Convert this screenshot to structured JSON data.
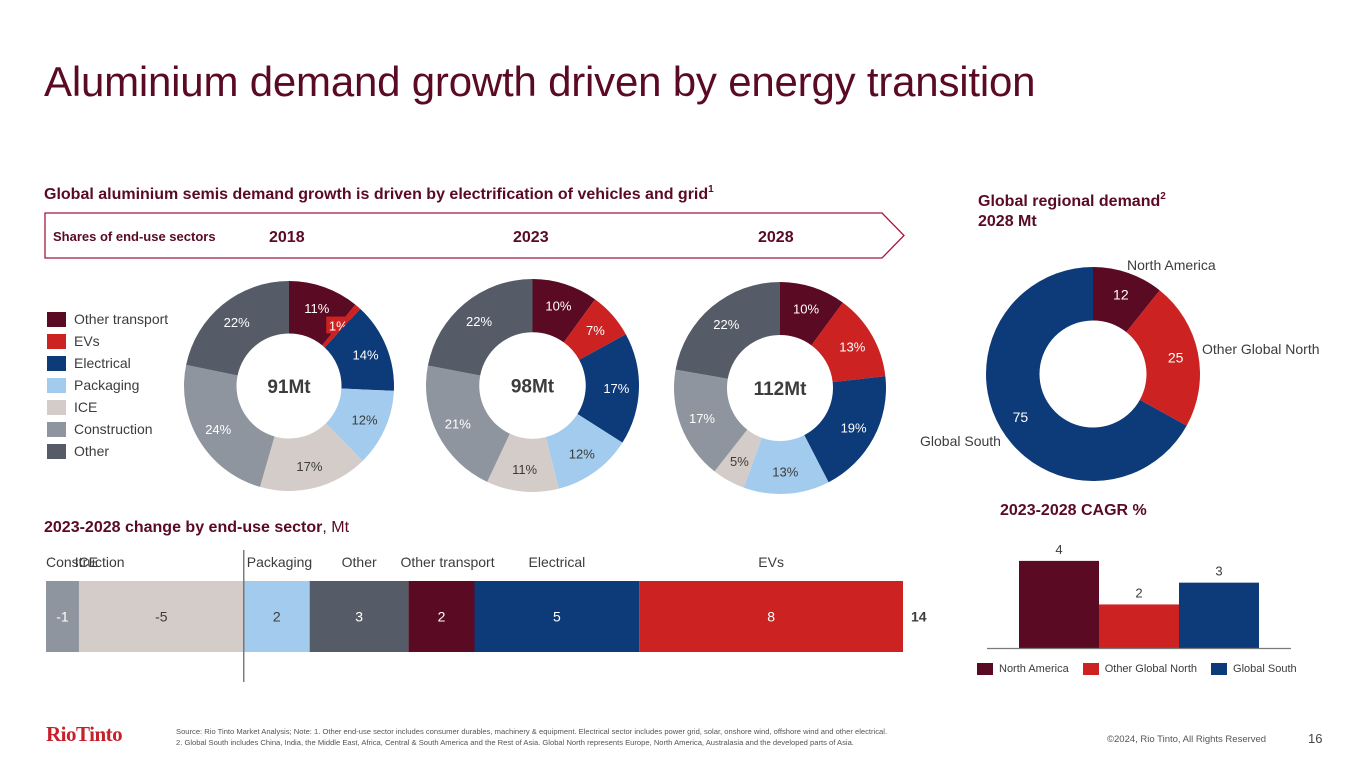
{
  "slide": {
    "title": "Aluminium demand growth driven by energy transition",
    "page_number": "16",
    "copyright": "©2024, Rio Tinto, All Rights Reserved",
    "logo_text": "RioTinto",
    "footnote_line1": "Source: Rio Tinto Market Analysis; Note: 1. Other end-use sector includes consumer durables, machinery & equipment. Electrical sector includes power grid, solar, onshore wind, offshore wind and other electrical.",
    "footnote_line2": "2. Global South includes China, India, the Middle East, Africa, Central & South America and the Rest of Asia. Global North represents Europe, North America, Australasia and the developed parts of Asia."
  },
  "colors": {
    "title": "#5a0a22",
    "Other transport": "#5a0a22",
    "EVs": "#cc2222",
    "Electrical": "#0d3a78",
    "Packaging": "#a2cbee",
    "ICE": "#d3ccc8",
    "Construction": "#8e959e",
    "Other": "#565c67"
  },
  "semis_section": {
    "heading": "Global aluminium semis demand growth is driven by electrification of vehicles and grid",
    "heading_sup": "1",
    "banner_label": "Shares of end-use sectors",
    "legend": [
      "Other transport",
      "EVs",
      "Electrical",
      "Packaging",
      "ICE",
      "Construction",
      "Other"
    ]
  },
  "regional_section": {
    "heading": "Global regional demand",
    "heading_sup": "2",
    "subheading": "2028 Mt"
  },
  "change_section": {
    "heading_bold": "2023-2028 change by end-use sector",
    "heading_normal": ", Mt"
  },
  "cagr_section": {
    "heading": "2023-2028 CAGR %"
  },
  "chart_data": [
    {
      "type": "pie",
      "variant": "donut",
      "year": "2018",
      "center_label": "91Mt",
      "categories": [
        "Other transport",
        "EVs",
        "Electrical",
        "Packaging",
        "ICE",
        "Construction",
        "Other"
      ],
      "values": [
        11,
        1,
        14,
        12,
        17,
        24,
        22
      ],
      "labels": [
        "11%",
        "1%",
        "14%",
        "12%",
        "17%",
        "24%",
        "22%"
      ],
      "unit": "%"
    },
    {
      "type": "pie",
      "variant": "donut",
      "year": "2023",
      "center_label": "98Mt",
      "categories": [
        "Other transport",
        "EVs",
        "Electrical",
        "Packaging",
        "ICE",
        "Construction",
        "Other"
      ],
      "values": [
        10,
        7,
        17,
        12,
        11,
        21,
        22
      ],
      "labels": [
        "10%",
        "7%",
        "17%",
        "12%",
        "11%",
        "21%",
        "22%"
      ],
      "unit": "%"
    },
    {
      "type": "pie",
      "variant": "donut",
      "year": "2028",
      "center_label": "112Mt",
      "categories": [
        "Other transport",
        "EVs",
        "Electrical",
        "Packaging",
        "ICE",
        "Construction",
        "Other"
      ],
      "values": [
        10,
        13,
        19,
        13,
        5,
        17,
        22
      ],
      "labels": [
        "10%",
        "13%",
        "19%",
        "13%",
        "5%",
        "17%",
        "22%"
      ],
      "unit": "%"
    },
    {
      "type": "pie",
      "variant": "donut",
      "title": "Global regional demand 2028 Mt",
      "categories": [
        "North America",
        "Other Global North",
        "Global South"
      ],
      "values": [
        12,
        25,
        75
      ],
      "labels": [
        "12",
        "25",
        "75"
      ],
      "colors": [
        "#5a0a22",
        "#cc2222",
        "#0d3a78"
      ],
      "unit": "Mt"
    },
    {
      "type": "bar",
      "variant": "waterfall",
      "title": "2023-2028 change by end-use sector, Mt",
      "categories": [
        "Construction",
        "ICE",
        "Packaging",
        "Other",
        "Other transport",
        "Electrical",
        "EVs"
      ],
      "values": [
        -1,
        -5,
        2,
        3,
        2,
        5,
        8
      ],
      "labels": [
        "-1",
        "-5",
        "2",
        "3",
        "2",
        "5",
        "8"
      ],
      "total_label": "14",
      "total": 14
    },
    {
      "type": "bar",
      "title": "2023-2028 CAGR %",
      "categories": [
        "North America",
        "Other Global North",
        "Global South"
      ],
      "values": [
        4,
        2,
        3
      ],
      "labels": [
        "4",
        "2",
        "3"
      ],
      "colors": [
        "#5a0a22",
        "#cc2222",
        "#0d3a78"
      ],
      "legend": [
        "North America",
        "Other Global North",
        "Global South"
      ],
      "legend_position": "bottom",
      "ylim": [
        0,
        4.5
      ]
    }
  ]
}
